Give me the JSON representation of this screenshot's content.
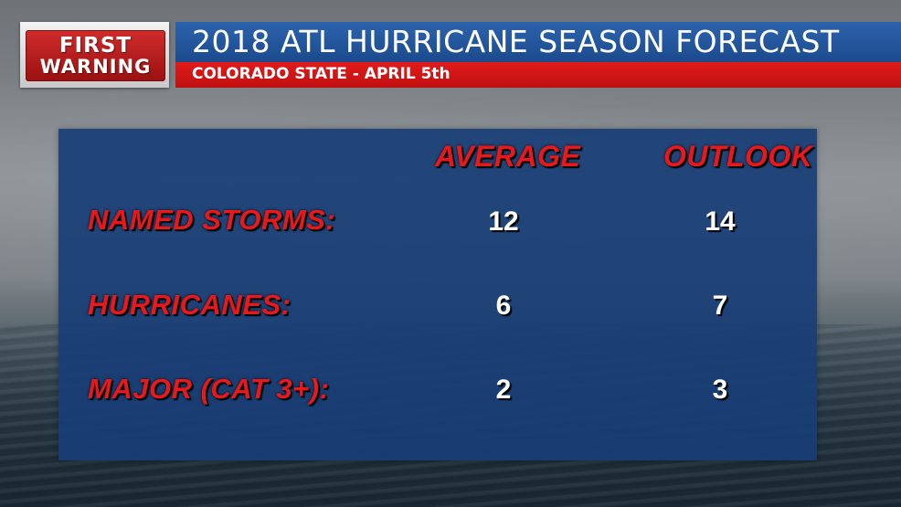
{
  "header": {
    "logo_line1": "FIRST",
    "logo_line2": "WARNING",
    "title": "2018 ATL HURRICANE SEASON FORECAST",
    "subtitle": "COLORADO STATE - APRIL 5th"
  },
  "table": {
    "columns": [
      "AVERAGE",
      "OUTLOOK"
    ],
    "rows": [
      {
        "label": "NAMED STORMS:",
        "average": "12",
        "outlook": "14"
      },
      {
        "label": "HURRICANES:",
        "average": "6",
        "outlook": "7"
      },
      {
        "label": "MAJOR (CAT 3+):",
        "average": "2",
        "outlook": "3"
      }
    ]
  },
  "colors": {
    "accent_red": "#e8181b",
    "title_blue": "#2d63ad",
    "panel_blue": "#183e76"
  }
}
